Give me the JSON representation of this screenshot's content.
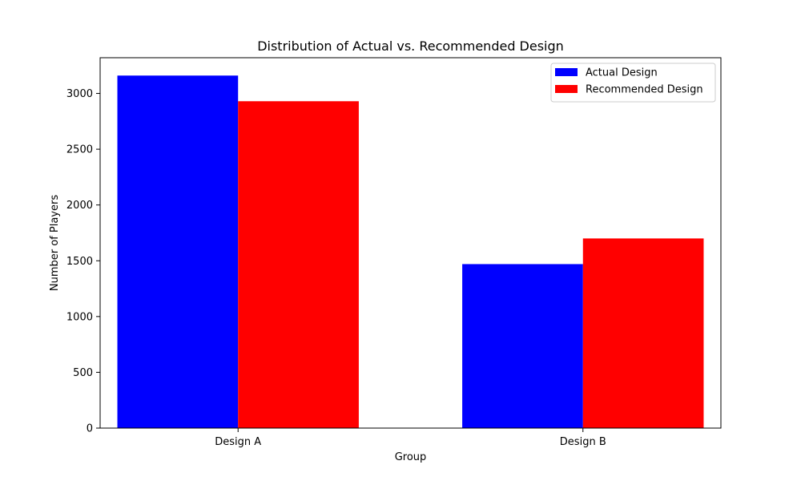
{
  "chart_data": {
    "type": "bar",
    "title": "Distribution of Actual vs. Recommended Design",
    "xlabel": "Group",
    "ylabel": "Number of Players",
    "categories": [
      "Design A",
      "Design B"
    ],
    "series": [
      {
        "name": "Actual Design",
        "color": "#0000ff",
        "values": [
          3160,
          1470
        ]
      },
      {
        "name": "Recommended Design",
        "color": "#ff0000",
        "values": [
          2930,
          1700
        ]
      }
    ],
    "ylim": [
      0,
      3320
    ],
    "yticks": [
      0,
      500,
      1000,
      1500,
      2000,
      2500,
      3000
    ],
    "ytick_labels": [
      "0",
      "500",
      "1000",
      "1500",
      "2000",
      "2500",
      "3000"
    ],
    "grid": false,
    "legend": {
      "position": "top-right",
      "entries": [
        "Actual Design",
        "Recommended Design"
      ]
    }
  }
}
